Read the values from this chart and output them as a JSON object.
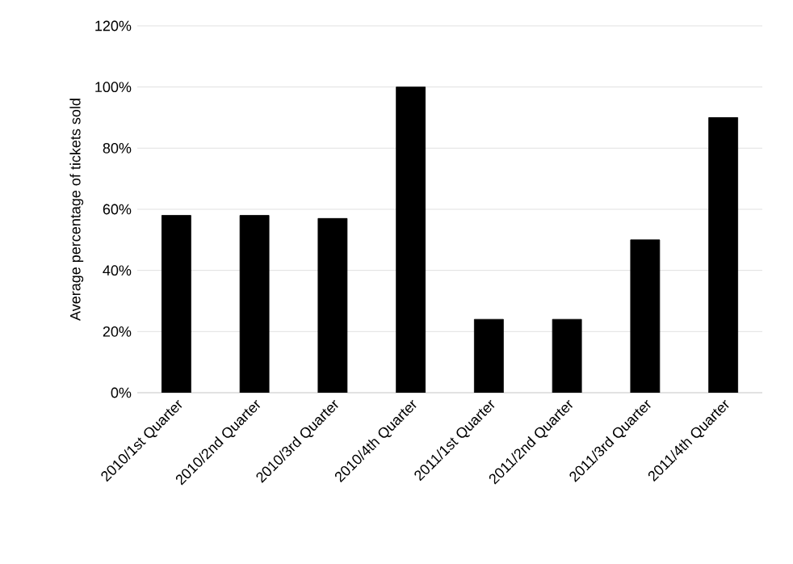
{
  "chart_data": {
    "type": "bar",
    "ylabel": "Average percentage of tickets sold",
    "categories": [
      "2010/1st Quarter",
      "2010/2nd Quarter",
      "2010/3rd Quarter",
      "2010/4th Quarter",
      "2011/1st Quarter",
      "2011/2nd Quarter",
      "2011/3rd Quarter",
      "2011/4th Quarter"
    ],
    "values": [
      58,
      58,
      57,
      100,
      24,
      24,
      50,
      90
    ],
    "color": "#000000",
    "ylim": [
      0,
      120
    ],
    "yticks": [
      {
        "value": 0,
        "label": "0%"
      },
      {
        "value": 20,
        "label": "20%"
      },
      {
        "value": 40,
        "label": "40%"
      },
      {
        "value": 60,
        "label": "60%"
      },
      {
        "value": 80,
        "label": "80%"
      },
      {
        "value": 100,
        "label": "100%"
      },
      {
        "value": 120,
        "label": "120%"
      }
    ],
    "grid": "y"
  }
}
